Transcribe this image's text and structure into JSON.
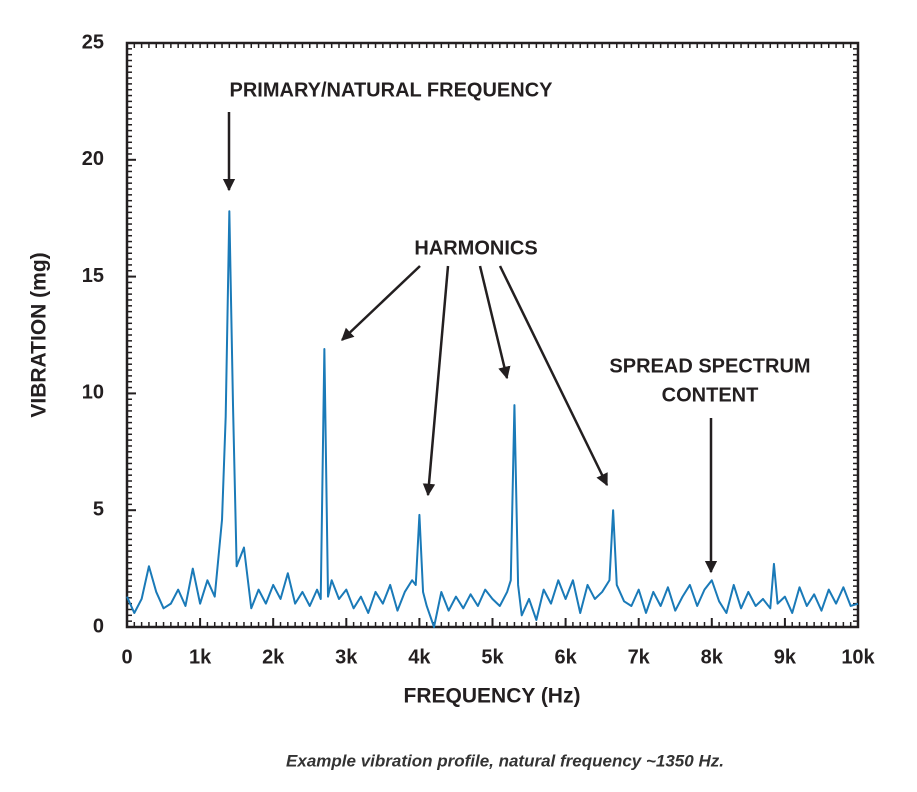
{
  "chart_data": {
    "type": "line",
    "x_label": "FREQUENCY (Hz)",
    "y_label": "VIBRATION (mg)",
    "caption": "Example vibration profile, natural frequency ~1350 Hz.",
    "annotations": [
      "PRIMARY/NATURAL FREQUENCY",
      "HARMONICS",
      "SPREAD SPECTRUM",
      "CONTENT"
    ],
    "xlim": [
      0,
      10000
    ],
    "xticks": [
      0,
      {
        "value": 1000,
        "label": "1k"
      },
      {
        "value": 2000,
        "label": "2k"
      },
      {
        "value": 3000,
        "label": "3k"
      },
      {
        "value": 4000,
        "label": "4k"
      },
      {
        "value": 5000,
        "label": "5k"
      },
      {
        "value": 6000,
        "label": "6k"
      },
      {
        "value": 7000,
        "label": "7k"
      },
      {
        "value": 8000,
        "label": "8k"
      },
      {
        "value": 9000,
        "label": "9k"
      },
      {
        "value": 10000,
        "label": "10k"
      }
    ],
    "ylim": [
      0,
      25
    ],
    "yticks": [
      0,
      5,
      10,
      15,
      20,
      25
    ],
    "color": "#1a7ab8",
    "x": [
      0,
      100,
      200,
      300,
      400,
      500,
      600,
      700,
      800,
      900,
      1000,
      1100,
      1200,
      1300,
      1350,
      1400,
      1450,
      1500,
      1600,
      1700,
      1800,
      1900,
      2000,
      2100,
      2200,
      2300,
      2400,
      2500,
      2600,
      2650,
      2700,
      2750,
      2800,
      2900,
      3000,
      3100,
      3200,
      3300,
      3400,
      3500,
      3600,
      3700,
      3800,
      3900,
      3950,
      4000,
      4050,
      4100,
      4200,
      4300,
      4400,
      4500,
      4600,
      4700,
      4800,
      4900,
      5000,
      5100,
      5200,
      5250,
      5300,
      5350,
      5400,
      5500,
      5600,
      5700,
      5800,
      5900,
      6000,
      6100,
      6200,
      6300,
      6400,
      6500,
      6600,
      6650,
      6700,
      6800,
      6900,
      7000,
      7100,
      7200,
      7300,
      7400,
      7500,
      7600,
      7700,
      7800,
      7900,
      8000,
      8100,
      8200,
      8300,
      8400,
      8500,
      8600,
      8700,
      8800,
      8850,
      8900,
      9000,
      9100,
      9200,
      9300,
      9400,
      9500,
      9600,
      9700,
      9800,
      9900,
      10000
    ],
    "values": [
      1.3,
      0.6,
      1.2,
      2.6,
      1.5,
      0.8,
      1.0,
      1.6,
      0.9,
      2.5,
      1.0,
      2.0,
      1.3,
      4.6,
      9.0,
      17.8,
      9.5,
      2.6,
      3.4,
      0.8,
      1.6,
      1.0,
      1.8,
      1.2,
      2.3,
      1.0,
      1.5,
      0.9,
      1.6,
      1.2,
      11.9,
      1.3,
      2.0,
      1.2,
      1.6,
      0.8,
      1.3,
      0.6,
      1.5,
      1.0,
      1.8,
      0.7,
      1.5,
      2.0,
      1.8,
      4.8,
      1.5,
      0.9,
      0,
      1.5,
      0.7,
      1.3,
      0.8,
      1.4,
      0.9,
      1.6,
      1.2,
      0.9,
      1.5,
      2.0,
      9.5,
      1.8,
      0.5,
      1.2,
      0.3,
      1.6,
      1.0,
      2.0,
      1.2,
      2.0,
      0.6,
      1.8,
      1.2,
      1.5,
      2.0,
      5.0,
      1.8,
      1.1,
      0.9,
      1.6,
      0.6,
      1.5,
      0.9,
      1.7,
      0.7,
      1.3,
      1.8,
      0.9,
      1.6,
      2.0,
      1.1,
      0.6,
      1.8,
      0.8,
      1.5,
      0.9,
      1.2,
      0.8,
      2.7,
      1.0,
      1.3,
      0.6,
      1.7,
      0.9,
      1.4,
      0.7,
      1.6,
      1.0,
      1.7,
      0.9,
      1.0
    ]
  }
}
